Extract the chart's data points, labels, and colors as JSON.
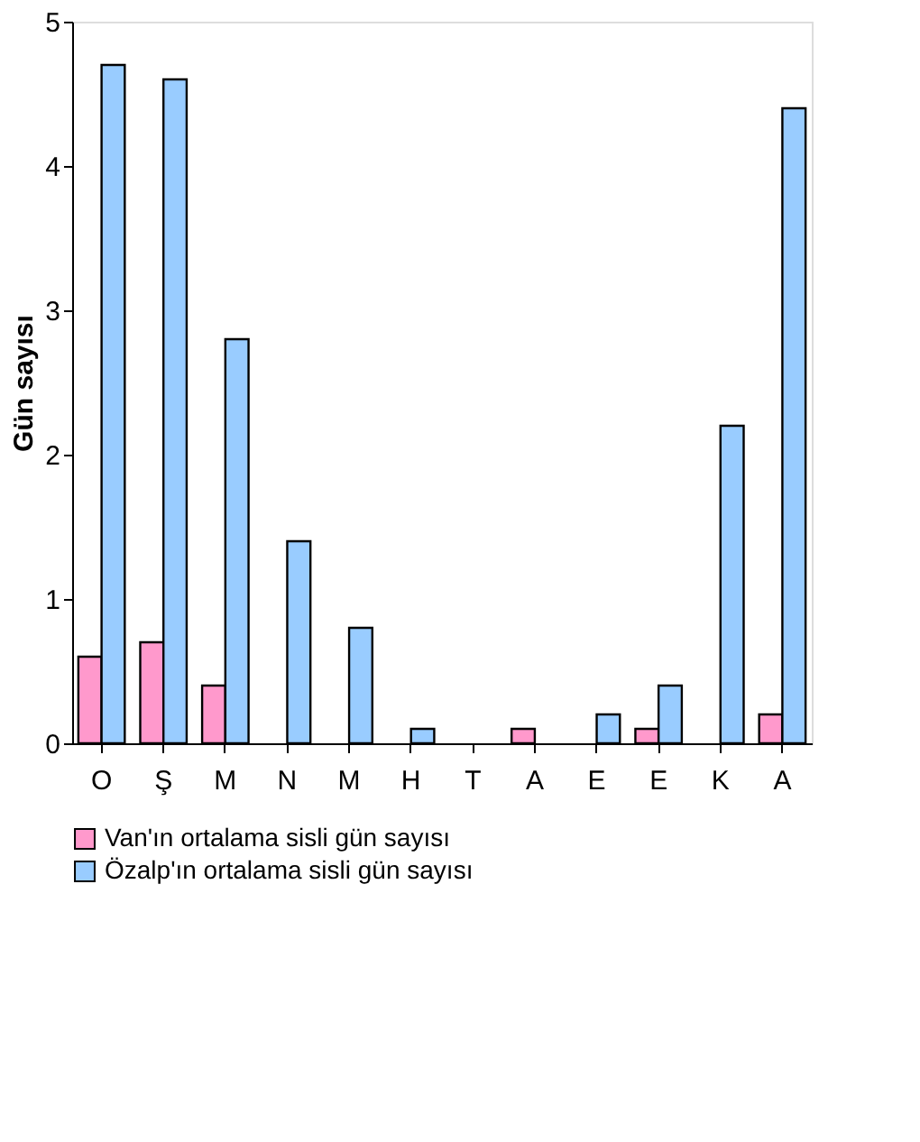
{
  "chart_data": {
    "type": "bar",
    "ylabel": "Gün sayısı",
    "categories": [
      "O",
      "Ş",
      "M",
      "N",
      "M",
      "H",
      "T",
      "A",
      "E",
      "E",
      "K",
      "A"
    ],
    "series": [
      {
        "name": "Van'ın ortalama sisli gün sayısı",
        "color": "#ff99cc",
        "values": [
          0.6,
          0.7,
          0.4,
          0,
          0,
          0,
          0,
          0.1,
          0,
          0.1,
          0,
          0.2
        ]
      },
      {
        "name": "Özalp'ın ortalama sisli gün sayısı",
        "color": "#99ccff",
        "values": [
          4.7,
          4.6,
          2.8,
          1.4,
          0.8,
          0.1,
          0,
          0,
          0.2,
          0.4,
          2.2,
          4.4
        ]
      }
    ],
    "ylim": [
      0,
      5
    ],
    "yticks": [
      0,
      1,
      2,
      3,
      4,
      5
    ],
    "grid": false,
    "legend": "bottom"
  }
}
